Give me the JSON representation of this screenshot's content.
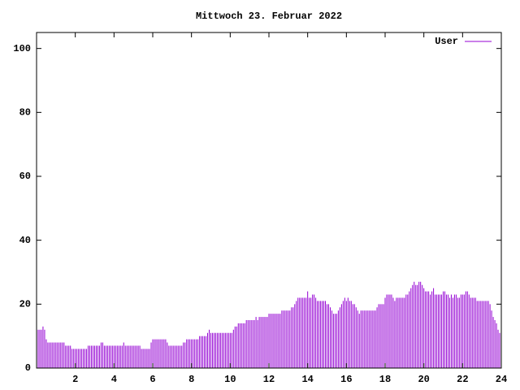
{
  "chart_data": {
    "type": "impulse",
    "title": "Mittwoch 23. Februar 2022",
    "xlim": [
      0,
      24
    ],
    "ylim": [
      0,
      105
    ],
    "xticks": [
      2,
      4,
      6,
      8,
      10,
      12,
      14,
      16,
      18,
      20,
      22,
      24
    ],
    "yticks": [
      0,
      20,
      40,
      60,
      80,
      100
    ],
    "legend": "top-right",
    "series": [
      {
        "name": "User",
        "color": "#9400d3",
        "x": [
          0,
          0.083,
          0.167,
          0.25,
          0.333,
          0.417,
          0.5,
          0.583,
          0.667,
          0.75,
          0.833,
          0.917,
          1,
          1.083,
          1.167,
          1.25,
          1.333,
          1.417,
          1.5,
          1.583,
          1.667,
          1.75,
          1.833,
          1.917,
          2,
          2.083,
          2.167,
          2.25,
          2.333,
          2.417,
          2.5,
          2.583,
          2.667,
          2.75,
          2.833,
          2.917,
          3,
          3.083,
          3.167,
          3.25,
          3.333,
          3.417,
          3.5,
          3.583,
          3.667,
          3.75,
          3.833,
          3.917,
          4,
          4.083,
          4.167,
          4.25,
          4.333,
          4.417,
          4.5,
          4.583,
          4.667,
          4.75,
          4.833,
          4.917,
          5,
          5.083,
          5.167,
          5.25,
          5.333,
          5.417,
          5.5,
          5.583,
          5.667,
          5.75,
          5.833,
          5.917,
          6,
          6.083,
          6.167,
          6.25,
          6.333,
          6.417,
          6.5,
          6.583,
          6.667,
          6.75,
          6.833,
          6.917,
          7,
          7.083,
          7.167,
          7.25,
          7.333,
          7.417,
          7.5,
          7.583,
          7.667,
          7.75,
          7.833,
          7.917,
          8,
          8.083,
          8.167,
          8.25,
          8.333,
          8.417,
          8.5,
          8.583,
          8.667,
          8.75,
          8.833,
          8.917,
          9,
          9.083,
          9.167,
          9.25,
          9.333,
          9.417,
          9.5,
          9.583,
          9.667,
          9.75,
          9.833,
          9.917,
          10,
          10.083,
          10.167,
          10.25,
          10.333,
          10.417,
          10.5,
          10.583,
          10.667,
          10.75,
          10.833,
          10.917,
          11,
          11.083,
          11.167,
          11.25,
          11.333,
          11.417,
          11.5,
          11.583,
          11.667,
          11.75,
          11.833,
          11.917,
          12,
          12.083,
          12.167,
          12.25,
          12.333,
          12.417,
          12.5,
          12.583,
          12.667,
          12.75,
          12.833,
          12.917,
          13,
          13.083,
          13.167,
          13.25,
          13.333,
          13.417,
          13.5,
          13.583,
          13.667,
          13.75,
          13.833,
          13.917,
          14,
          14.083,
          14.167,
          14.25,
          14.333,
          14.417,
          14.5,
          14.583,
          14.667,
          14.75,
          14.833,
          14.917,
          15,
          15.083,
          15.167,
          15.25,
          15.333,
          15.417,
          15.5,
          15.583,
          15.667,
          15.75,
          15.833,
          15.917,
          16,
          16.083,
          16.167,
          16.25,
          16.333,
          16.417,
          16.5,
          16.583,
          16.667,
          16.75,
          16.833,
          16.917,
          17,
          17.083,
          17.167,
          17.25,
          17.333,
          17.417,
          17.5,
          17.583,
          17.667,
          17.75,
          17.833,
          17.917,
          18,
          18.083,
          18.167,
          18.25,
          18.333,
          18.417,
          18.5,
          18.583,
          18.667,
          18.75,
          18.833,
          18.917,
          19,
          19.083,
          19.167,
          19.25,
          19.333,
          19.417,
          19.5,
          19.583,
          19.667,
          19.75,
          19.833,
          19.917,
          20,
          20.083,
          20.167,
          20.25,
          20.333,
          20.417,
          20.5,
          20.583,
          20.667,
          20.75,
          20.833,
          20.917,
          21,
          21.083,
          21.167,
          21.25,
          21.333,
          21.417,
          21.5,
          21.583,
          21.667,
          21.75,
          21.833,
          21.917,
          22,
          22.083,
          22.167,
          22.25,
          22.333,
          22.417,
          22.5,
          22.583,
          22.667,
          22.75,
          22.833,
          22.917,
          23,
          23.083,
          23.167,
          23.25,
          23.333,
          23.417,
          23.5,
          23.583,
          23.667,
          23.75,
          23.833,
          23.917
        ],
        "values": [
          13,
          12,
          12,
          12,
          13,
          12,
          9,
          8,
          8,
          8,
          8,
          8,
          8,
          8,
          8,
          8,
          8,
          8,
          7,
          7,
          7,
          7,
          6,
          6,
          6,
          6,
          6,
          6,
          6,
          6,
          6,
          6,
          7,
          7,
          7,
          7,
          7,
          7,
          7,
          7,
          8,
          8,
          7,
          7,
          7,
          7,
          7,
          7,
          7,
          7,
          7,
          7,
          7,
          7,
          8,
          7,
          7,
          7,
          7,
          7,
          7,
          7,
          7,
          7,
          7,
          6,
          6,
          6,
          6,
          6,
          6,
          8,
          9,
          9,
          9,
          9,
          9,
          9,
          9,
          9,
          9,
          8,
          7,
          7,
          7,
          7,
          7,
          7,
          7,
          7,
          7,
          8,
          8,
          9,
          9,
          9,
          9,
          9,
          9,
          9,
          9,
          10,
          10,
          10,
          10,
          10,
          11,
          12,
          11,
          11,
          11,
          11,
          11,
          11,
          11,
          11,
          11,
          11,
          11,
          11,
          11,
          11,
          12,
          13,
          13,
          14,
          14,
          14,
          14,
          14,
          15,
          15,
          15,
          15,
          15,
          15,
          16,
          15,
          16,
          16,
          16,
          16,
          16,
          16,
          17,
          17,
          17,
          17,
          17,
          17,
          17,
          17,
          18,
          18,
          18,
          18,
          18,
          18,
          19,
          19,
          20,
          21,
          22,
          22,
          22,
          22,
          22,
          22,
          24,
          22,
          22,
          23,
          23,
          22,
          21,
          21,
          21,
          21,
          21,
          21,
          20,
          20,
          19,
          18,
          17,
          17,
          17,
          18,
          19,
          20,
          21,
          22,
          21,
          22,
          21,
          21,
          20,
          20,
          19,
          18,
          17,
          18,
          18,
          18,
          18,
          18,
          18,
          18,
          18,
          18,
          18,
          19,
          20,
          20,
          20,
          20,
          22,
          23,
          23,
          23,
          23,
          22,
          21,
          22,
          22,
          22,
          22,
          22,
          22,
          23,
          23,
          24,
          25,
          26,
          27,
          26,
          26,
          27,
          27,
          26,
          25,
          24,
          24,
          24,
          23,
          24,
          25,
          23,
          23,
          23,
          23,
          23,
          24,
          24,
          23,
          23,
          22,
          23,
          22,
          23,
          23,
          22,
          22,
          23,
          23,
          23,
          24,
          24,
          23,
          22,
          22,
          22,
          22,
          21,
          21,
          21,
          21,
          21,
          21,
          21,
          21,
          20,
          18,
          16,
          15,
          14,
          12,
          11
        ]
      }
    ]
  }
}
